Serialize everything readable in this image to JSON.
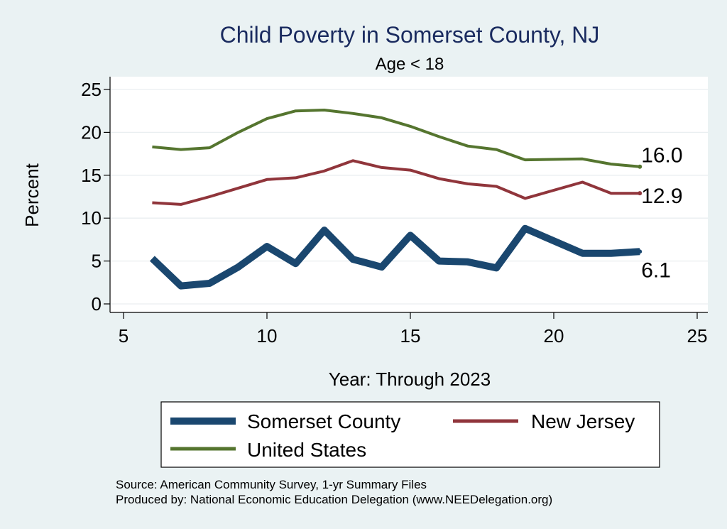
{
  "chart_data": {
    "type": "line",
    "title": "Child Poverty in Somerset County, NJ",
    "subtitle": "Age < 18",
    "xlabel": "Year: Through 2023",
    "ylabel": "Percent",
    "xlim": [
      5,
      25
    ],
    "ylim": [
      0,
      25
    ],
    "xticks": [
      5,
      10,
      15,
      20,
      25
    ],
    "yticks": [
      0,
      5,
      10,
      15,
      20,
      25
    ],
    "grid": true,
    "legend_position": "bottom",
    "series": [
      {
        "name": "Somerset County",
        "color": "#1a476f",
        "end_label": "6.1",
        "x": [
          6,
          7,
          8,
          9,
          10,
          11,
          12,
          13,
          14,
          15,
          16,
          17,
          18,
          19,
          21,
          22,
          23
        ],
        "values": [
          5.3,
          2.1,
          2.4,
          4.3,
          6.7,
          4.7,
          8.6,
          5.2,
          4.3,
          8.0,
          5.0,
          4.9,
          4.2,
          8.8,
          5.9,
          5.9,
          6.1
        ]
      },
      {
        "name": "New Jersey",
        "color": "#90353b",
        "end_label": "12.9",
        "x": [
          6,
          7,
          8,
          9,
          10,
          11,
          12,
          13,
          14,
          15,
          16,
          17,
          18,
          19,
          21,
          22,
          23
        ],
        "values": [
          11.8,
          11.6,
          12.5,
          13.5,
          14.5,
          14.7,
          15.5,
          16.7,
          15.9,
          15.6,
          14.6,
          14.0,
          13.7,
          12.3,
          14.2,
          12.9,
          12.9
        ]
      },
      {
        "name": "United States",
        "color": "#55752f",
        "end_label": "16.0",
        "x": [
          6,
          7,
          8,
          9,
          10,
          11,
          12,
          13,
          14,
          15,
          16,
          17,
          18,
          19,
          21,
          22,
          23
        ],
        "values": [
          18.3,
          18.0,
          18.2,
          20.0,
          21.6,
          22.5,
          22.6,
          22.2,
          21.7,
          20.7,
          19.5,
          18.4,
          18.0,
          16.8,
          16.9,
          16.3,
          16.0
        ]
      }
    ],
    "notes": [
      "Source: American Community Survey, 1-yr Summary Files",
      "Produced by: National Economic Education Delegation (www.NEEDelegation.org)"
    ]
  }
}
